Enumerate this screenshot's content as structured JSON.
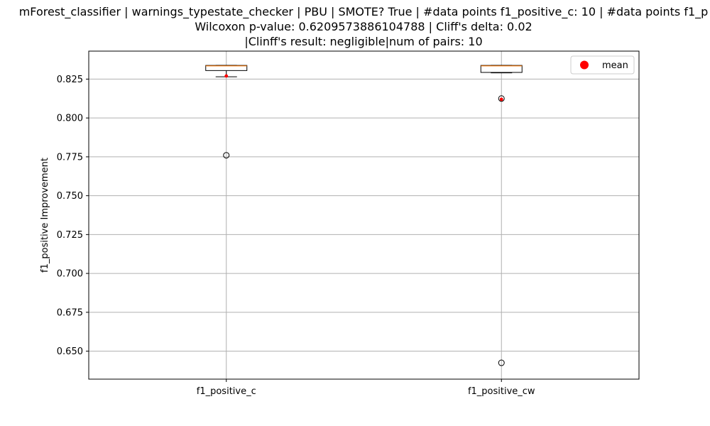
{
  "chart_data": {
    "type": "box",
    "title_lines": [
      "mForest_classifier | warnings_typestate_checker | PBU | SMOTE? True | #data points f1_positive_c: 10 | #data points f1_p",
      "Wilcoxon p-value: 0.6209573886104788 | Cliff's delta: 0.02",
      "|Clinff's result: negligible|num of pairs: 10"
    ],
    "xlabel": "",
    "ylabel": "f1_positive Improvement",
    "ylim": [
      0.632,
      0.843
    ],
    "yticks": [
      0.65,
      0.675,
      0.7,
      0.725,
      0.75,
      0.775,
      0.8,
      0.825
    ],
    "ytick_labels": [
      "0.650",
      "0.675",
      "0.700",
      "0.725",
      "0.750",
      "0.775",
      "0.800",
      "0.825"
    ],
    "grid": true,
    "legend": {
      "entries": [
        "mean"
      ],
      "placement": "top-right"
    },
    "categories": [
      "f1_positive_c",
      "f1_positive_cw"
    ],
    "boxes": [
      {
        "name": "f1_positive_c",
        "whisker_low": 0.8265,
        "q1": 0.8305,
        "median": 0.8335,
        "q3": 0.8338,
        "whisker_high": 0.8338,
        "outliers": [
          0.776
        ],
        "mean": 0.827
      },
      {
        "name": "f1_positive_cw",
        "whisker_low": 0.829,
        "q1": 0.8293,
        "median": 0.8335,
        "q3": 0.8338,
        "whisker_high": 0.8338,
        "outliers": [
          0.8125,
          0.6425
        ],
        "mean": 0.812
      }
    ],
    "colors": {
      "box": "#000000",
      "median": "#ff7f0e",
      "mean": "#ff0000",
      "grid": "#b0b0b0"
    }
  }
}
